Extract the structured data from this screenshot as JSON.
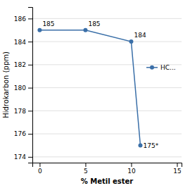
{
  "chart_data": {
    "type": "line",
    "x": [
      0,
      5,
      10,
      11
    ],
    "series": [
      {
        "name": "HC...",
        "color": "#3a6fa8",
        "marker": "circle",
        "values": [
          185,
          185,
          184,
          175
        ],
        "value_labels": [
          "185",
          "185",
          "184",
          "175*"
        ]
      }
    ],
    "xlabel": "% Metil ester",
    "ylabel": "Hidrokarbon (ppm)",
    "xlim": [
      -0.8,
      15.5
    ],
    "ylim": [
      173.5,
      187
    ],
    "xticks": [
      0,
      5,
      10,
      15
    ],
    "yticks": [
      174,
      176,
      178,
      180,
      182,
      184,
      186
    ],
    "grid": "y",
    "legend": "right",
    "data_labels": true
  }
}
